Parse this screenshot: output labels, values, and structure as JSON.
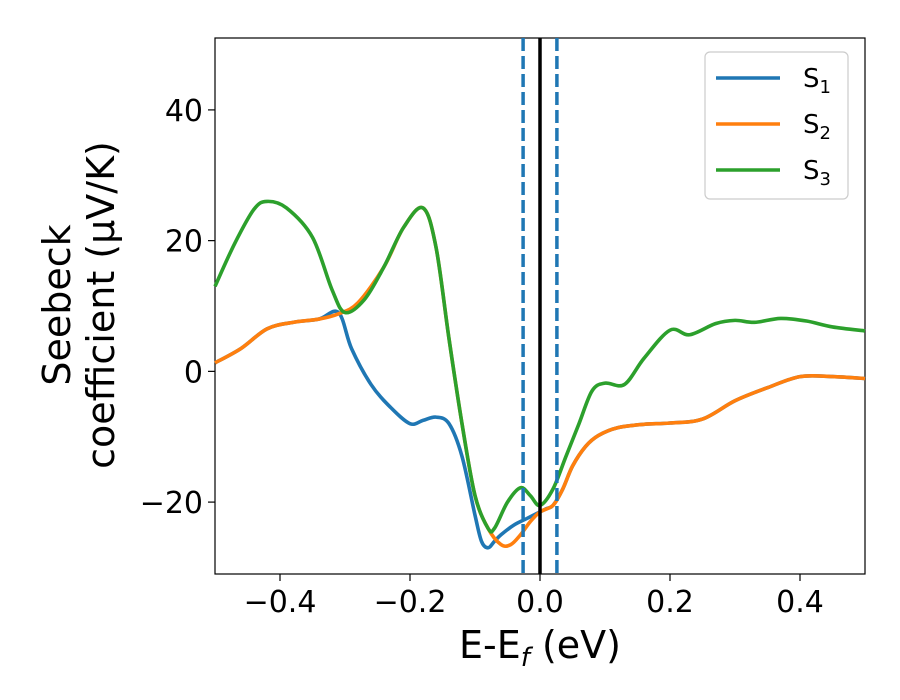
{
  "chart_data": {
    "type": "line",
    "xlabel": {
      "main": "E-E",
      "sub": "f",
      "unit": " (eV)"
    },
    "ylabel": {
      "line1": "Seebeck",
      "line2": "coefficient  (μV/K)"
    },
    "xlim": [
      -0.5,
      0.5
    ],
    "ylim": [
      -31,
      51
    ],
    "xticks": [
      -0.4,
      -0.2,
      0.0,
      0.2,
      0.4
    ],
    "xtick_labels": [
      "−0.4",
      "−0.2",
      "0.0",
      "0.2",
      "0.4"
    ],
    "yticks": [
      -20,
      0,
      20,
      40
    ],
    "ytick_labels": [
      "−20",
      "0",
      "20",
      "40"
    ],
    "grid": false,
    "legend_position": "top-right",
    "vlines": [
      {
        "x": -0.026,
        "color": "#1f77b4",
        "style": "dashed"
      },
      {
        "x": 0.0,
        "color": "#000000",
        "style": "solid"
      },
      {
        "x": 0.026,
        "color": "#1f77b4",
        "style": "dashed"
      }
    ],
    "series": [
      {
        "name": "S",
        "sub": "1",
        "color": "#1f77b4",
        "points": [
          [
            -0.5,
            1.3
          ],
          [
            -0.46,
            3.5
          ],
          [
            -0.42,
            6.5
          ],
          [
            -0.38,
            7.5
          ],
          [
            -0.34,
            8.0
          ],
          [
            -0.31,
            9.0
          ],
          [
            -0.29,
            3.5
          ],
          [
            -0.26,
            -2.0
          ],
          [
            -0.23,
            -5.5
          ],
          [
            -0.2,
            -8.0
          ],
          [
            -0.18,
            -7.5
          ],
          [
            -0.16,
            -7.0
          ],
          [
            -0.14,
            -8.0
          ],
          [
            -0.12,
            -13.0
          ],
          [
            -0.1,
            -22.0
          ],
          [
            -0.09,
            -26.0
          ],
          [
            -0.08,
            -27.0
          ],
          [
            -0.07,
            -26.0
          ],
          [
            -0.06,
            -25.0
          ],
          [
            -0.04,
            -23.5
          ],
          [
            -0.02,
            -22.5
          ],
          [
            0.0,
            -21.5
          ],
          [
            0.01,
            -21.0
          ],
          [
            0.02,
            -20.5
          ],
          [
            0.035,
            -18.0
          ],
          [
            0.05,
            -14.5
          ],
          [
            0.07,
            -11.5
          ],
          [
            0.09,
            -9.8
          ],
          [
            0.12,
            -8.6
          ],
          [
            0.16,
            -8.1
          ],
          [
            0.2,
            -7.9
          ],
          [
            0.25,
            -7.3
          ],
          [
            0.3,
            -4.5
          ],
          [
            0.35,
            -2.5
          ],
          [
            0.4,
            -0.8
          ],
          [
            0.45,
            -0.8
          ],
          [
            0.5,
            -1.1
          ]
        ]
      },
      {
        "name": "S",
        "sub": "2",
        "color": "#ff7f0e",
        "points": [
          [
            -0.5,
            1.3
          ],
          [
            -0.46,
            3.5
          ],
          [
            -0.42,
            6.5
          ],
          [
            -0.38,
            7.5
          ],
          [
            -0.34,
            8.0
          ],
          [
            -0.31,
            8.8
          ],
          [
            -0.28,
            10.5
          ],
          [
            -0.24,
            16.0
          ],
          [
            -0.21,
            22.0
          ],
          [
            -0.18,
            25.0
          ],
          [
            -0.16,
            19.0
          ],
          [
            -0.14,
            5.0
          ],
          [
            -0.12,
            -8.0
          ],
          [
            -0.1,
            -19.0
          ],
          [
            -0.08,
            -24.0
          ],
          [
            -0.06,
            -26.5
          ],
          [
            -0.045,
            -26.5
          ],
          [
            -0.03,
            -25.0
          ],
          [
            -0.015,
            -23.0
          ],
          [
            0.0,
            -21.5
          ],
          [
            0.02,
            -20.5
          ],
          [
            0.035,
            -18.0
          ],
          [
            0.05,
            -14.5
          ],
          [
            0.07,
            -11.5
          ],
          [
            0.09,
            -9.8
          ],
          [
            0.12,
            -8.6
          ],
          [
            0.16,
            -8.1
          ],
          [
            0.2,
            -7.9
          ],
          [
            0.25,
            -7.3
          ],
          [
            0.3,
            -4.5
          ],
          [
            0.35,
            -2.5
          ],
          [
            0.4,
            -0.8
          ],
          [
            0.45,
            -0.8
          ],
          [
            0.5,
            -1.1
          ]
        ]
      },
      {
        "name": "S",
        "sub": "3",
        "color": "#2ca02c",
        "points": [
          [
            -0.5,
            13.0
          ],
          [
            -0.47,
            19.5
          ],
          [
            -0.44,
            24.8
          ],
          [
            -0.42,
            26.0
          ],
          [
            -0.39,
            25.0
          ],
          [
            -0.35,
            20.5
          ],
          [
            -0.32,
            12.5
          ],
          [
            -0.3,
            9.0
          ],
          [
            -0.27,
            11.0
          ],
          [
            -0.24,
            16.0
          ],
          [
            -0.21,
            22.0
          ],
          [
            -0.18,
            25.0
          ],
          [
            -0.16,
            19.0
          ],
          [
            -0.14,
            5.0
          ],
          [
            -0.12,
            -8.0
          ],
          [
            -0.1,
            -19.0
          ],
          [
            -0.08,
            -24.0
          ],
          [
            -0.07,
            -24.0
          ],
          [
            -0.05,
            -20.0
          ],
          [
            -0.03,
            -17.8
          ],
          [
            -0.015,
            -19.0
          ],
          [
            0.0,
            -20.5
          ],
          [
            0.02,
            -18.0
          ],
          [
            0.04,
            -13.0
          ],
          [
            0.06,
            -8.0
          ],
          [
            0.08,
            -3.0
          ],
          [
            0.1,
            -1.8
          ],
          [
            0.13,
            -2.0
          ],
          [
            0.16,
            2.0
          ],
          [
            0.2,
            6.3
          ],
          [
            0.23,
            5.6
          ],
          [
            0.27,
            7.3
          ],
          [
            0.3,
            7.8
          ],
          [
            0.33,
            7.5
          ],
          [
            0.37,
            8.1
          ],
          [
            0.41,
            7.7
          ],
          [
            0.45,
            6.8
          ],
          [
            0.5,
            6.2
          ]
        ]
      }
    ]
  }
}
